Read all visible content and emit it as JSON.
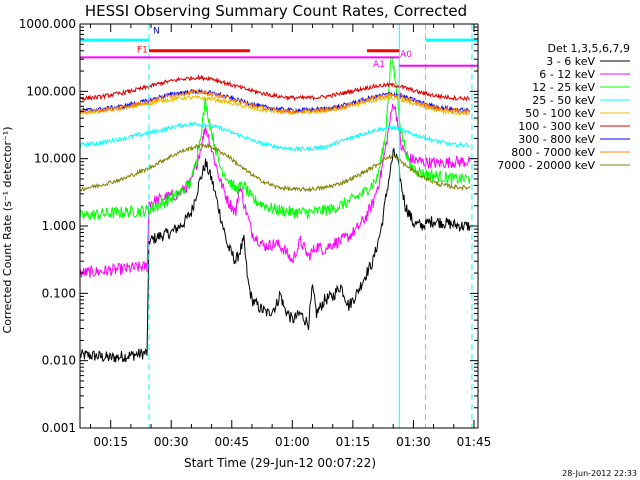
{
  "title": "HESSI Observing Summary Count Rates, Corrected",
  "timestamp": "28-Jun-2012 22:33",
  "colors": {
    "3-6": "#000000",
    "6-12": "#ff00ff",
    "12-25": "#00ff00",
    "25-50": "#00ffff",
    "50-100": "#e8c000",
    "100-300": "#e00000",
    "300-800": "#0000ff",
    "800-7000": "#ff8000",
    "7000-20000": "#808000",
    "night": "#00ffff",
    "flare": "#ff0000",
    "attenuator": "#ff00ff",
    "saa": "#ff00ff"
  },
  "chart_data": {
    "type": "line",
    "title": "HESSI Observing Summary Count Rates, Corrected",
    "xlabel": "Start Time (29-Jun-12 00:07:22)",
    "ylabel": "Corrected Count Rate (s⁻¹ detector⁻¹)",
    "yscale": "log",
    "ylim": [
      0.001,
      1000
    ],
    "xlim_minutes": [
      7.4,
      106.0
    ],
    "xticks": [
      {
        "m": 15,
        "label": "00:15"
      },
      {
        "m": 30,
        "label": "00:30"
      },
      {
        "m": 45,
        "label": "00:45"
      },
      {
        "m": 60,
        "label": "01:00"
      },
      {
        "m": 75,
        "label": "01:15"
      },
      {
        "m": 90,
        "label": "01:30"
      },
      {
        "m": 105,
        "label": "01:45"
      }
    ],
    "yticks": [
      {
        "v": 1000,
        "label": "1000.000"
      },
      {
        "v": 100,
        "label": "100.000"
      },
      {
        "v": 10,
        "label": "10.000"
      },
      {
        "v": 1,
        "label": "1.000"
      },
      {
        "v": 0.1,
        "label": "0.100"
      },
      {
        "v": 0.01,
        "label": "0.010"
      },
      {
        "v": 0.001,
        "label": "0.001"
      }
    ],
    "legend_title": "Det 1,3,5,6,7,9",
    "series": [
      {
        "key": "3-6",
        "name": "3 - 6 keV",
        "points": [
          [
            7.4,
            0.012
          ],
          [
            10,
            0.012
          ],
          [
            15,
            0.011
          ],
          [
            20,
            0.012
          ],
          [
            24,
            0.013
          ],
          [
            24.5,
            0.6
          ],
          [
            27,
            0.7
          ],
          [
            30,
            0.8
          ],
          [
            33,
            1.1
          ],
          [
            35,
            1.6
          ],
          [
            37,
            4.5
          ],
          [
            38.5,
            8.5
          ],
          [
            40,
            5
          ],
          [
            42,
            1.6
          ],
          [
            44,
            0.5
          ],
          [
            46,
            0.3
          ],
          [
            48,
            0.6
          ],
          [
            49,
            0.15
          ],
          [
            50,
            0.08
          ],
          [
            52,
            0.06
          ],
          [
            54,
            0.05
          ],
          [
            56,
            0.065
          ],
          [
            57,
            0.1
          ],
          [
            58,
            0.06
          ],
          [
            60,
            0.04
          ],
          [
            62,
            0.05
          ],
          [
            64,
            0.035
          ],
          [
            65,
            0.12
          ],
          [
            66,
            0.05
          ],
          [
            68,
            0.08
          ],
          [
            70,
            0.09
          ],
          [
            72,
            0.13
          ],
          [
            74,
            0.065
          ],
          [
            76,
            0.1
          ],
          [
            78,
            0.18
          ],
          [
            80,
            0.3
          ],
          [
            82,
            0.9
          ],
          [
            83.5,
            3.5
          ],
          [
            85,
            12
          ],
          [
            86,
            10
          ],
          [
            87,
            4
          ],
          [
            88,
            2
          ],
          [
            89,
            1.5
          ],
          [
            90,
            1.1
          ],
          [
            92,
            1
          ],
          [
            95,
            1.2
          ],
          [
            98,
            1.1
          ],
          [
            102,
            1.0
          ],
          [
            104,
            1.0
          ]
        ]
      },
      {
        "key": "6-12",
        "name": "6 - 12 keV",
        "points": [
          [
            7.4,
            0.2
          ],
          [
            12,
            0.21
          ],
          [
            18,
            0.23
          ],
          [
            24,
            0.25
          ],
          [
            24.5,
            2.2
          ],
          [
            28,
            2.6
          ],
          [
            32,
            3
          ],
          [
            35,
            4.5
          ],
          [
            37,
            12
          ],
          [
            38.5,
            30
          ],
          [
            40,
            14
          ],
          [
            42,
            5
          ],
          [
            44,
            2.4
          ],
          [
            46,
            1.6
          ],
          [
            47,
            4
          ],
          [
            48,
            2.2
          ],
          [
            50,
            0.8
          ],
          [
            53,
            0.5
          ],
          [
            56,
            0.55
          ],
          [
            58,
            0.45
          ],
          [
            60,
            0.3
          ],
          [
            62,
            0.6
          ],
          [
            64,
            0.35
          ],
          [
            66,
            0.5
          ],
          [
            68,
            0.45
          ],
          [
            70,
            0.55
          ],
          [
            72,
            0.6
          ],
          [
            74,
            0.7
          ],
          [
            76,
            0.9
          ],
          [
            78,
            1.3
          ],
          [
            80,
            2.2
          ],
          [
            82,
            6
          ],
          [
            84,
            30
          ],
          [
            85,
            70
          ],
          [
            86,
            40
          ],
          [
            87,
            15
          ],
          [
            89,
            10
          ],
          [
            92,
            9
          ],
          [
            96,
            8.5
          ],
          [
            100,
            9
          ],
          [
            104,
            9
          ]
        ]
      },
      {
        "key": "12-25",
        "name": "12 - 25 keV",
        "points": [
          [
            7.4,
            1.4
          ],
          [
            12,
            1.5
          ],
          [
            18,
            1.6
          ],
          [
            24,
            1.7
          ],
          [
            28,
            2.2
          ],
          [
            32,
            3
          ],
          [
            35,
            4.5
          ],
          [
            37,
            18
          ],
          [
            38.5,
            70
          ],
          [
            40,
            25
          ],
          [
            42,
            8
          ],
          [
            44,
            5
          ],
          [
            46,
            3.5
          ],
          [
            48,
            4
          ],
          [
            50,
            2.5
          ],
          [
            55,
            1.8
          ],
          [
            60,
            1.6
          ],
          [
            65,
            1.6
          ],
          [
            70,
            1.8
          ],
          [
            74,
            2.3
          ],
          [
            78,
            3.2
          ],
          [
            81,
            5
          ],
          [
            83,
            20
          ],
          [
            84.5,
            350
          ],
          [
            85.5,
            150
          ],
          [
            87,
            25
          ],
          [
            89,
            8
          ],
          [
            92,
            6
          ],
          [
            96,
            5.5
          ],
          [
            100,
            5
          ],
          [
            104,
            5
          ]
        ]
      },
      {
        "key": "25-50",
        "name": "25 - 50 keV",
        "points": [
          [
            7.4,
            16
          ],
          [
            12,
            17
          ],
          [
            18,
            20
          ],
          [
            24,
            24
          ],
          [
            28,
            27
          ],
          [
            32,
            31
          ],
          [
            36,
            33
          ],
          [
            40,
            31
          ],
          [
            44,
            26
          ],
          [
            48,
            21
          ],
          [
            52,
            17
          ],
          [
            56,
            15
          ],
          [
            60,
            14
          ],
          [
            64,
            14
          ],
          [
            68,
            15
          ],
          [
            72,
            18
          ],
          [
            76,
            22
          ],
          [
            80,
            26
          ],
          [
            84,
            29
          ],
          [
            86,
            28
          ],
          [
            88,
            25
          ],
          [
            92,
            21
          ],
          [
            96,
            18
          ],
          [
            100,
            16
          ],
          [
            104,
            16
          ]
        ]
      },
      {
        "key": "50-100",
        "name": "50 - 100 keV",
        "points": [
          [
            7.4,
            48
          ],
          [
            12,
            50
          ],
          [
            18,
            56
          ],
          [
            24,
            65
          ],
          [
            28,
            73
          ],
          [
            32,
            79
          ],
          [
            36,
            81
          ],
          [
            40,
            77
          ],
          [
            44,
            69
          ],
          [
            48,
            60
          ],
          [
            52,
            53
          ],
          [
            56,
            50
          ],
          [
            60,
            48
          ],
          [
            64,
            49
          ],
          [
            68,
            51
          ],
          [
            72,
            56
          ],
          [
            76,
            64
          ],
          [
            80,
            73
          ],
          [
            84,
            79
          ],
          [
            86,
            77
          ],
          [
            88,
            72
          ],
          [
            92,
            60
          ],
          [
            96,
            52
          ],
          [
            100,
            48
          ],
          [
            104,
            47
          ]
        ]
      },
      {
        "key": "100-300",
        "name": "100 - 300 keV",
        "points": [
          [
            7.4,
            78
          ],
          [
            12,
            82
          ],
          [
            18,
            95
          ],
          [
            24,
            115
          ],
          [
            28,
            135
          ],
          [
            32,
            150
          ],
          [
            36,
            160
          ],
          [
            40,
            155
          ],
          [
            44,
            130
          ],
          [
            48,
            110
          ],
          [
            52,
            95
          ],
          [
            56,
            85
          ],
          [
            60,
            80
          ],
          [
            64,
            80
          ],
          [
            68,
            83
          ],
          [
            72,
            92
          ],
          [
            76,
            105
          ],
          [
            80,
            118
          ],
          [
            84,
            125
          ],
          [
            86,
            122
          ],
          [
            88,
            112
          ],
          [
            92,
            95
          ],
          [
            96,
            85
          ],
          [
            100,
            80
          ],
          [
            104,
            78
          ]
        ]
      },
      {
        "key": "300-800",
        "name": "300 - 800 keV",
        "points": [
          [
            7.4,
            52
          ],
          [
            12,
            54
          ],
          [
            18,
            60
          ],
          [
            24,
            72
          ],
          [
            28,
            85
          ],
          [
            32,
            95
          ],
          [
            36,
            100
          ],
          [
            40,
            95
          ],
          [
            44,
            82
          ],
          [
            48,
            70
          ],
          [
            52,
            60
          ],
          [
            56,
            55
          ],
          [
            60,
            52
          ],
          [
            64,
            53
          ],
          [
            68,
            55
          ],
          [
            72,
            60
          ],
          [
            76,
            70
          ],
          [
            80,
            82
          ],
          [
            84,
            92
          ],
          [
            86,
            90
          ],
          [
            88,
            82
          ],
          [
            92,
            68
          ],
          [
            96,
            58
          ],
          [
            100,
            54
          ],
          [
            104,
            52
          ]
        ]
      },
      {
        "key": "800-7000",
        "name": "800 - 7000 keV",
        "points": [
          [
            7.4,
            50
          ],
          [
            12,
            52
          ],
          [
            18,
            58
          ],
          [
            24,
            70
          ],
          [
            28,
            82
          ],
          [
            32,
            92
          ],
          [
            36,
            97
          ],
          [
            40,
            92
          ],
          [
            44,
            80
          ],
          [
            48,
            68
          ],
          [
            52,
            58
          ],
          [
            56,
            53
          ],
          [
            60,
            50
          ],
          [
            64,
            51
          ],
          [
            68,
            53
          ],
          [
            72,
            58
          ],
          [
            76,
            68
          ],
          [
            80,
            80
          ],
          [
            84,
            88
          ],
          [
            86,
            86
          ],
          [
            88,
            79
          ],
          [
            92,
            65
          ],
          [
            96,
            56
          ],
          [
            100,
            52
          ],
          [
            104,
            50
          ]
        ]
      },
      {
        "key": "7000-20000",
        "name": "7000 - 20000 keV",
        "points": [
          [
            7.4,
            3.5
          ],
          [
            12,
            4
          ],
          [
            18,
            5
          ],
          [
            24,
            7
          ],
          [
            28,
            9.5
          ],
          [
            32,
            12.5
          ],
          [
            36,
            15
          ],
          [
            38,
            16
          ],
          [
            40,
            15
          ],
          [
            44,
            11
          ],
          [
            48,
            7
          ],
          [
            52,
            4.8
          ],
          [
            56,
            3.8
          ],
          [
            60,
            3.5
          ],
          [
            64,
            3.5
          ],
          [
            68,
            3.7
          ],
          [
            72,
            4.3
          ],
          [
            76,
            5.5
          ],
          [
            80,
            7.5
          ],
          [
            83,
            10
          ],
          [
            85,
            11
          ],
          [
            86,
            10
          ],
          [
            88,
            8
          ],
          [
            92,
            5.5
          ],
          [
            96,
            4.2
          ],
          [
            100,
            3.8
          ],
          [
            104,
            3.7
          ]
        ]
      }
    ],
    "flags": {
      "night": {
        "label": "N",
        "segments": [
          [
            7.4,
            24.5
          ],
          [
            93,
            106
          ]
        ],
        "y": 575
      },
      "flare": {
        "label": "F1",
        "segments": [
          [
            24.5,
            49.5
          ],
          [
            78.5,
            86.5
          ]
        ],
        "y": 400
      },
      "attenuator": {
        "label": "A1",
        "segments": [
          [
            7.4,
            86.5
          ]
        ],
        "y": 320
      },
      "attenuator_out": {
        "label": "A0",
        "segments": [
          [
            86.5,
            106
          ]
        ],
        "y": 240
      },
      "night_lines_minutes": [
        7.4,
        24.5,
        93,
        104.5
      ],
      "saa_line_minutes": 86.5
    }
  }
}
